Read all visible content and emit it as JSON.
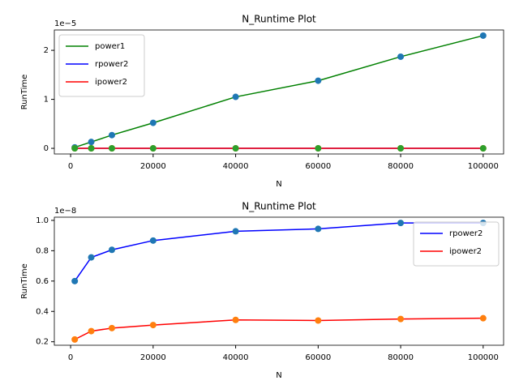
{
  "chart_data": [
    {
      "type": "line",
      "title": "N_Runtime Plot",
      "x_label": "N",
      "y_label": "RunTime",
      "offset_text": "1e−5",
      "x": [
        1000,
        5000,
        10000,
        20000,
        40000,
        60000,
        80000,
        100000
      ],
      "series": [
        {
          "name": "power1",
          "color": "#008000",
          "marker_color": "#1f77b4",
          "values": [
            0.02,
            0.13,
            0.27,
            0.52,
            1.05,
            1.38,
            1.87,
            2.3
          ]
        },
        {
          "name": "rpower2",
          "color": "#0000ff",
          "marker_color": "#ff7f0e",
          "values": [
            0.0006,
            0.00076,
            0.00081,
            0.00087,
            0.00093,
            0.00095,
            0.00099,
            0.00099
          ]
        },
        {
          "name": "ipower2",
          "color": "#ff0000",
          "marker_color": "#2ca02c",
          "values": [
            0.00022,
            0.00027,
            0.00029,
            0.00031,
            0.00034,
            0.00034,
            0.00035,
            0.00036
          ]
        }
      ],
      "xlim": [
        -3950,
        104950
      ],
      "xticks": [
        0,
        20000,
        40000,
        60000,
        80000,
        100000
      ],
      "ylim": [
        -0.115,
        2.415
      ],
      "yticks": [
        0,
        1,
        2
      ],
      "legend": "upper left"
    },
    {
      "type": "line",
      "title": "N_Runtime Plot",
      "x_label": "N",
      "y_label": "RunTime",
      "offset_text": "1e−8",
      "x": [
        1000,
        5000,
        10000,
        20000,
        40000,
        60000,
        80000,
        100000
      ],
      "series": [
        {
          "name": "rpower2",
          "color": "#0000ff",
          "marker_color": "#1f77b4",
          "values": [
            0.6,
            0.756,
            0.806,
            0.867,
            0.928,
            0.944,
            0.983,
            0.983
          ]
        },
        {
          "name": "ipower2",
          "color": "#ff0000",
          "marker_color": "#ff7f0e",
          "values": [
            0.215,
            0.27,
            0.29,
            0.31,
            0.344,
            0.34,
            0.35,
            0.355
          ]
        }
      ],
      "xlim": [
        -3950,
        104950
      ],
      "xticks": [
        0,
        20000,
        40000,
        60000,
        80000,
        100000
      ],
      "ylim": [
        0.177,
        1.021
      ],
      "yticks": [
        0.2,
        0.4,
        0.6,
        0.8,
        {
          "value": 1,
          "label": "1.0"
        }
      ],
      "legend": "upper right"
    }
  ]
}
